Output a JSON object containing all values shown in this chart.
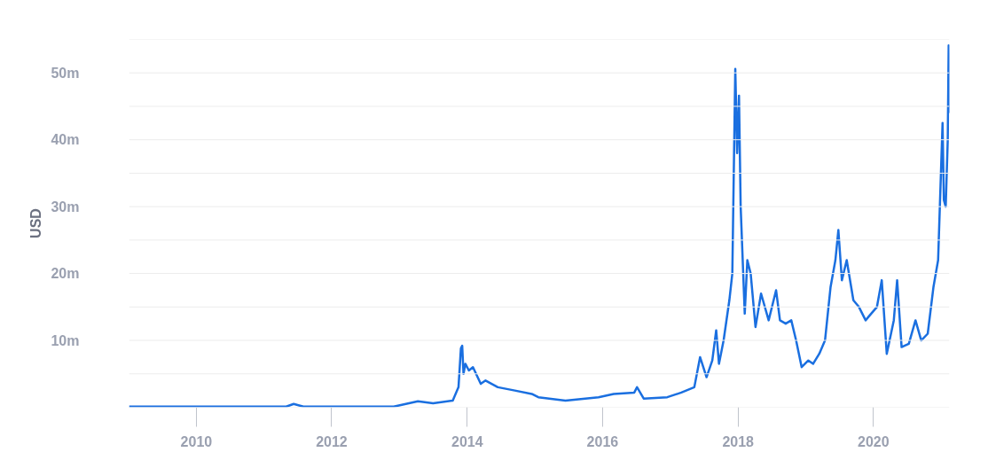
{
  "chart_data": {
    "type": "line",
    "ylabel": "USD",
    "x": [
      "2009-01-03",
      "2011-05-01",
      "2011-06-10",
      "2011-08-01",
      "2012-12-01",
      "2013-04-10",
      "2013-07-01",
      "2013-10-15",
      "2013-11-15",
      "2013-11-28",
      "2013-12-05",
      "2013-12-12",
      "2013-12-22",
      "2014-01-10",
      "2014-02-01",
      "2014-03-15",
      "2014-04-10",
      "2014-06-15",
      "2014-09-15",
      "2014-12-15",
      "2015-01-20",
      "2015-06-15",
      "2015-12-10",
      "2016-03-01",
      "2016-06-20",
      "2016-07-05",
      "2016-08-10",
      "2016-12-15",
      "2017-03-01",
      "2017-05-10",
      "2017-06-10",
      "2017-07-15",
      "2017-08-15",
      "2017-09-05",
      "2017-09-20",
      "2017-10-15",
      "2017-11-15",
      "2017-12-01",
      "2017-12-17",
      "2017-12-27",
      "2018-01-06",
      "2018-01-15",
      "2018-02-06",
      "2018-02-20",
      "2018-03-10",
      "2018-04-05",
      "2018-05-05",
      "2018-06-15",
      "2018-07-25",
      "2018-08-15",
      "2018-09-15",
      "2018-10-15",
      "2018-11-10",
      "2018-12-10",
      "2019-01-15",
      "2019-02-10",
      "2019-03-15",
      "2019-04-15",
      "2019-05-15",
      "2019-06-10",
      "2019-06-26",
      "2019-07-15",
      "2019-08-10",
      "2019-09-15",
      "2019-10-15",
      "2019-11-20",
      "2019-12-20",
      "2020-01-20",
      "2020-02-15",
      "2020-03-13",
      "2020-04-20",
      "2020-05-08",
      "2020-06-01",
      "2020-07-10",
      "2020-08-15",
      "2020-09-15",
      "2020-10-20",
      "2020-11-20",
      "2020-12-15",
      "2021-01-08",
      "2021-01-15",
      "2021-01-25",
      "2021-02-05",
      "2021-02-10",
      "2021-02-13"
    ],
    "series": [
      {
        "color": "#1a6fe0",
        "values": [
          0.1,
          0.1,
          0.5,
          0.1,
          0.1,
          0.9,
          0.6,
          1.0,
          3,
          8.8,
          9.2,
          5,
          6.5,
          5.5,
          6,
          3.5,
          4,
          3,
          2.5,
          2,
          1.5,
          1,
          1.5,
          2,
          2.2,
          3,
          1.3,
          1.5,
          2.2,
          3,
          7.5,
          4.5,
          7,
          11.5,
          6.5,
          10,
          16,
          20,
          50.6,
          38,
          46.6,
          30,
          14,
          22,
          20,
          12,
          17,
          13,
          17.5,
          13,
          12.5,
          13,
          10,
          6,
          7,
          6.5,
          8,
          10,
          18,
          22,
          26.5,
          19,
          22,
          16,
          15,
          13,
          14,
          15,
          19,
          8,
          13,
          19,
          9,
          9.5,
          13,
          10,
          11,
          18,
          22,
          42.5,
          31,
          30,
          40,
          54.1,
          44
        ]
      }
    ],
    "ylim": [
      0,
      55
    ],
    "yticks": [
      {
        "value": 0,
        "label": null
      },
      {
        "value": 5,
        "label": null
      },
      {
        "value": 10,
        "label": "10m"
      },
      {
        "value": 15,
        "label": null
      },
      {
        "value": 20,
        "label": "20m"
      },
      {
        "value": 25,
        "label": null
      },
      {
        "value": 30,
        "label": "30m"
      },
      {
        "value": 35,
        "label": null
      },
      {
        "value": 40,
        "label": "40m"
      },
      {
        "value": 45,
        "label": null
      },
      {
        "value": 50,
        "label": "50m"
      },
      {
        "value": 55,
        "label": null
      }
    ],
    "xlim": [
      "2009-01-03",
      "2021-02-14"
    ],
    "xticks": [
      {
        "value": "2010-01-01",
        "label": "2010"
      },
      {
        "value": "2012-01-01",
        "label": "2012"
      },
      {
        "value": "2014-01-01",
        "label": "2014"
      },
      {
        "value": "2016-01-01",
        "label": "2016"
      },
      {
        "value": "2018-01-01",
        "label": "2018"
      },
      {
        "value": "2020-01-01",
        "label": "2020"
      }
    ],
    "grid": "y",
    "marker": "none",
    "line_style": "solid"
  }
}
